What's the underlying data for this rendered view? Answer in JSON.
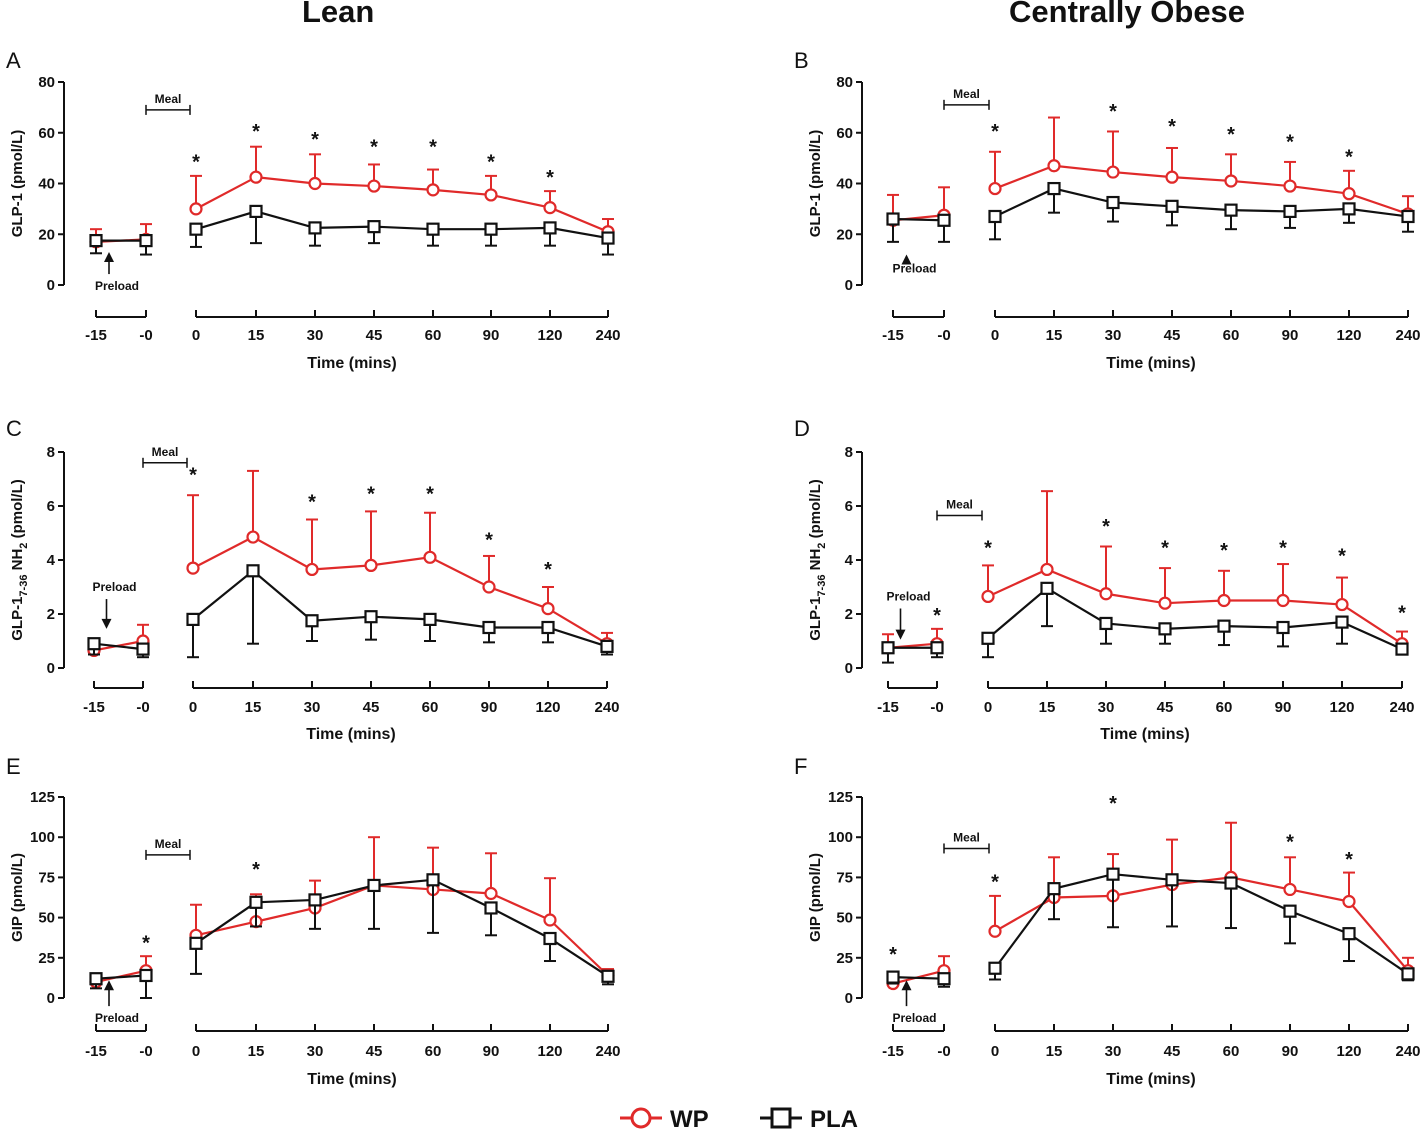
{
  "columns": [
    "Lean",
    "Centrally Obese"
  ],
  "legend": [
    {
      "label": "WP",
      "color": "#e02a2a",
      "marker": "circle"
    },
    {
      "label": "PLA",
      "color": "#111111",
      "marker": "square"
    }
  ],
  "chart_data": [
    {
      "type": "line",
      "panel": "A",
      "column": "Lean",
      "ylabel": "GLP-1 (pmol/L)",
      "xlabel": "Time (mins)",
      "ylim": [
        0,
        80
      ],
      "yticks": [
        0,
        20,
        40,
        60,
        80
      ],
      "pre_categories": [
        "-15",
        "-0"
      ],
      "categories": [
        "0",
        "15",
        "30",
        "45",
        "60",
        "90",
        "120",
        "240"
      ],
      "series": [
        {
          "name": "WP",
          "pre": [
            17,
            18
          ],
          "values": [
            30,
            42.5,
            40,
            39,
            37.5,
            35.5,
            30.5,
            21
          ],
          "pre_err": [
            5,
            6
          ],
          "err": [
            13,
            12,
            11.5,
            8.5,
            8,
            7.5,
            6.5,
            5
          ]
        },
        {
          "name": "PLA",
          "pre": [
            17.5,
            17.5
          ],
          "values": [
            22,
            29,
            22.5,
            23,
            22,
            22,
            22.5,
            18.5
          ],
          "pre_err": [
            5,
            5.5
          ],
          "err": [
            7,
            12.5,
            7,
            6.5,
            6.5,
            6.5,
            7,
            6.5
          ]
        }
      ],
      "stars": [
        {
          "at": "0",
          "value": 49
        },
        {
          "at": "15",
          "value": 61
        },
        {
          "at": "30",
          "value": 58
        },
        {
          "at": "45",
          "value": 55
        },
        {
          "at": "60",
          "value": 55
        },
        {
          "at": "90",
          "value": 49
        },
        {
          "at": "120",
          "value": 43
        }
      ],
      "meal": {
        "label": "Meal",
        "value": 69
      },
      "preload": {
        "label": "Preload",
        "value": 13,
        "arrow_to": 13,
        "text_value": -2
      }
    },
    {
      "type": "line",
      "panel": "B",
      "column": "Centrally Obese",
      "ylabel": "GLP-1 (pmol/L)",
      "xlabel": "Time (mins)",
      "ylim": [
        0,
        80
      ],
      "yticks": [
        0,
        20,
        40,
        60,
        80
      ],
      "pre_categories": [
        "-15",
        "-0"
      ],
      "categories": [
        "0",
        "15",
        "30",
        "45",
        "60",
        "90",
        "120",
        "240"
      ],
      "series": [
        {
          "name": "WP",
          "pre": [
            25.5,
            27.5
          ],
          "values": [
            38,
            47,
            44.5,
            42.5,
            41,
            39,
            36,
            28
          ],
          "pre_err": [
            10,
            11
          ],
          "err": [
            14.5,
            19,
            16,
            11.5,
            10.5,
            9.5,
            9,
            7
          ]
        },
        {
          "name": "PLA",
          "pre": [
            26,
            25.5
          ],
          "values": [
            27,
            38,
            32.5,
            31,
            29.5,
            29,
            30,
            27
          ],
          "pre_err": [
            9,
            8.5
          ],
          "err": [
            9,
            9.5,
            7.5,
            7.5,
            7.5,
            6.5,
            5.5,
            6
          ]
        }
      ],
      "stars": [
        {
          "at": "0",
          "value": 61
        },
        {
          "at": "30",
          "value": 69
        },
        {
          "at": "45",
          "value": 63
        },
        {
          "at": "60",
          "value": 60
        },
        {
          "at": "90",
          "value": 57
        },
        {
          "at": "120",
          "value": 51
        }
      ],
      "meal": {
        "label": "Meal",
        "value": 71
      },
      "preload": {
        "label": "Preload",
        "value": 13,
        "arrow_to": 12,
        "text_value": 5
      }
    },
    {
      "type": "line",
      "panel": "C",
      "column": "Lean",
      "ylabel": "GLP-1",
      "ylabel_sub": "7-36",
      "ylabel_rest": " NH",
      "ylabel_sub2": "2",
      "ylabel_unit": " (pmol/L)",
      "xlabel": "Time (mins)",
      "ylim": [
        0,
        8
      ],
      "yticks": [
        0,
        2,
        4,
        6,
        8
      ],
      "pre_categories": [
        "-15",
        "-0"
      ],
      "categories": [
        "0",
        "15",
        "30",
        "45",
        "60",
        "90",
        "120",
        "240"
      ],
      "series": [
        {
          "name": "WP",
          "pre": [
            0.65,
            1.0
          ],
          "values": [
            3.7,
            4.85,
            3.65,
            3.8,
            4.1,
            3.0,
            2.2,
            0.9
          ],
          "pre_err": [
            0.3,
            0.6
          ],
          "err": [
            2.7,
            2.45,
            1.85,
            2.0,
            1.65,
            1.15,
            0.8,
            0.4
          ]
        },
        {
          "name": "PLA",
          "pre": [
            0.9,
            0.7
          ],
          "values": [
            1.8,
            3.6,
            1.75,
            1.9,
            1.8,
            1.5,
            1.5,
            0.8
          ],
          "pre_err": [
            0.4,
            0.3
          ],
          "err": [
            1.4,
            2.7,
            0.75,
            0.85,
            0.8,
            0.55,
            0.55,
            0.3
          ]
        }
      ],
      "stars": [
        {
          "at": "0",
          "value": 7.2
        },
        {
          "at": "30",
          "value": 6.2
        },
        {
          "at": "45",
          "value": 6.5
        },
        {
          "at": "60",
          "value": 6.5
        },
        {
          "at": "90",
          "value": 4.8
        },
        {
          "at": "120",
          "value": 3.7
        }
      ],
      "meal": {
        "label": "Meal",
        "value": 7.6
      },
      "preload": {
        "label": "Preload",
        "value": 2.9,
        "arrow_to": 1.45,
        "text_value": 2.85
      }
    },
    {
      "type": "line",
      "panel": "D",
      "column": "Centrally Obese",
      "ylabel": "GLP-1",
      "ylabel_sub": "7-36",
      "ylabel_rest": " NH",
      "ylabel_sub2": "2",
      "ylabel_unit": " (pmol/L)",
      "xlabel": "Time (mins)",
      "ylim": [
        0,
        8
      ],
      "yticks": [
        0,
        2,
        4,
        6,
        8
      ],
      "pre_categories": [
        "-15",
        "-0"
      ],
      "categories": [
        "0",
        "15",
        "30",
        "45",
        "60",
        "90",
        "120",
        "240"
      ],
      "series": [
        {
          "name": "WP",
          "pre": [
            0.75,
            0.9
          ],
          "values": [
            2.65,
            3.65,
            2.75,
            2.4,
            2.5,
            2.5,
            2.35,
            0.9
          ],
          "pre_err": [
            0.5,
            0.55
          ],
          "err": [
            1.15,
            2.9,
            1.75,
            1.3,
            1.1,
            1.35,
            1.0,
            0.45
          ]
        },
        {
          "name": "PLA",
          "pre": [
            0.75,
            0.75
          ],
          "values": [
            1.1,
            2.95,
            1.65,
            1.45,
            1.55,
            1.5,
            1.7,
            0.7
          ],
          "pre_err": [
            0.55,
            0.35
          ],
          "err": [
            0.7,
            1.4,
            0.75,
            0.55,
            0.7,
            0.7,
            0.8,
            0.2
          ]
        }
      ],
      "stars": [
        {
          "at": "-0",
          "value": 2.0
        },
        {
          "at": "0",
          "value": 4.5
        },
        {
          "at": "30",
          "value": 5.3
        },
        {
          "at": "45",
          "value": 4.5
        },
        {
          "at": "60",
          "value": 4.4
        },
        {
          "at": "90",
          "value": 4.5
        },
        {
          "at": "120",
          "value": 4.2
        },
        {
          "at": "240",
          "value": 2.1
        }
      ],
      "meal": {
        "label": "Meal",
        "value": 5.65
      },
      "preload": {
        "label": "Preload",
        "value": 2.5,
        "arrow_to": 1.05,
        "text_value": 2.5
      }
    },
    {
      "type": "line",
      "panel": "E",
      "column": "Lean",
      "ylabel": "GIP (pmol/L)",
      "xlabel": "Time (mins)",
      "ylim": [
        0,
        125
      ],
      "yticks": [
        0,
        25,
        50,
        75,
        100,
        125
      ],
      "pre_categories": [
        "-15",
        "-0"
      ],
      "categories": [
        "0",
        "15",
        "30",
        "45",
        "60",
        "90",
        "120",
        "240"
      ],
      "series": [
        {
          "name": "WP",
          "pre": [
            10,
            17
          ],
          "values": [
            39,
            47.5,
            56,
            70,
            67.5,
            65,
            48.5,
            14
          ],
          "pre_err": [
            4,
            9
          ],
          "err": [
            19,
            17,
            17,
            30,
            26,
            25,
            26,
            4
          ]
        },
        {
          "name": "PLA",
          "pre": [
            12,
            14
          ],
          "values": [
            34,
            59.5,
            61,
            70,
            73.5,
            56,
            37,
            13.5
          ],
          "pre_err": [
            6,
            14
          ],
          "err": [
            19,
            15,
            18,
            27,
            33,
            17,
            14,
            5
          ]
        }
      ],
      "stars": [
        {
          "at": "-0",
          "value": 35
        },
        {
          "at": "15",
          "value": 81
        }
      ],
      "meal": {
        "label": "Meal",
        "value": 89
      },
      "preload": {
        "label": "Preload",
        "value": -15,
        "arrow_to": 11,
        "text_value": -15
      }
    },
    {
      "type": "line",
      "panel": "F",
      "column": "Centrally Obese",
      "ylabel": "GIP (pmol/L)",
      "xlabel": "Time (mins)",
      "ylim": [
        0,
        125
      ],
      "yticks": [
        0,
        25,
        50,
        75,
        100,
        125
      ],
      "pre_categories": [
        "-15",
        "-0"
      ],
      "categories": [
        "0",
        "15",
        "30",
        "45",
        "60",
        "90",
        "120",
        "240"
      ],
      "series": [
        {
          "name": "WP",
          "pre": [
            9,
            17
          ],
          "values": [
            41.5,
            62.5,
            63.5,
            70.5,
            75,
            67.5,
            60,
            17
          ],
          "pre_err": [
            5,
            9
          ],
          "err": [
            22,
            25,
            26,
            28,
            34,
            20,
            18,
            8
          ]
        },
        {
          "name": "PLA",
          "pre": [
            13,
            12
          ],
          "values": [
            18.5,
            68,
            77,
            73.5,
            71.5,
            54,
            40,
            15
          ],
          "pre_err": [
            4,
            5
          ],
          "err": [
            7,
            19,
            33,
            29,
            28,
            20,
            17,
            4
          ]
        }
      ],
      "stars": [
        {
          "at": "-15",
          "value": 28
        },
        {
          "at": "0",
          "value": 73
        },
        {
          "at": "30",
          "value": 122
        },
        {
          "at": "90",
          "value": 98
        },
        {
          "at": "120",
          "value": 87
        }
      ],
      "meal": {
        "label": "Meal",
        "value": 93
      },
      "preload": {
        "label": "Preload",
        "value": -15,
        "arrow_to": 11,
        "text_value": -15
      }
    }
  ]
}
